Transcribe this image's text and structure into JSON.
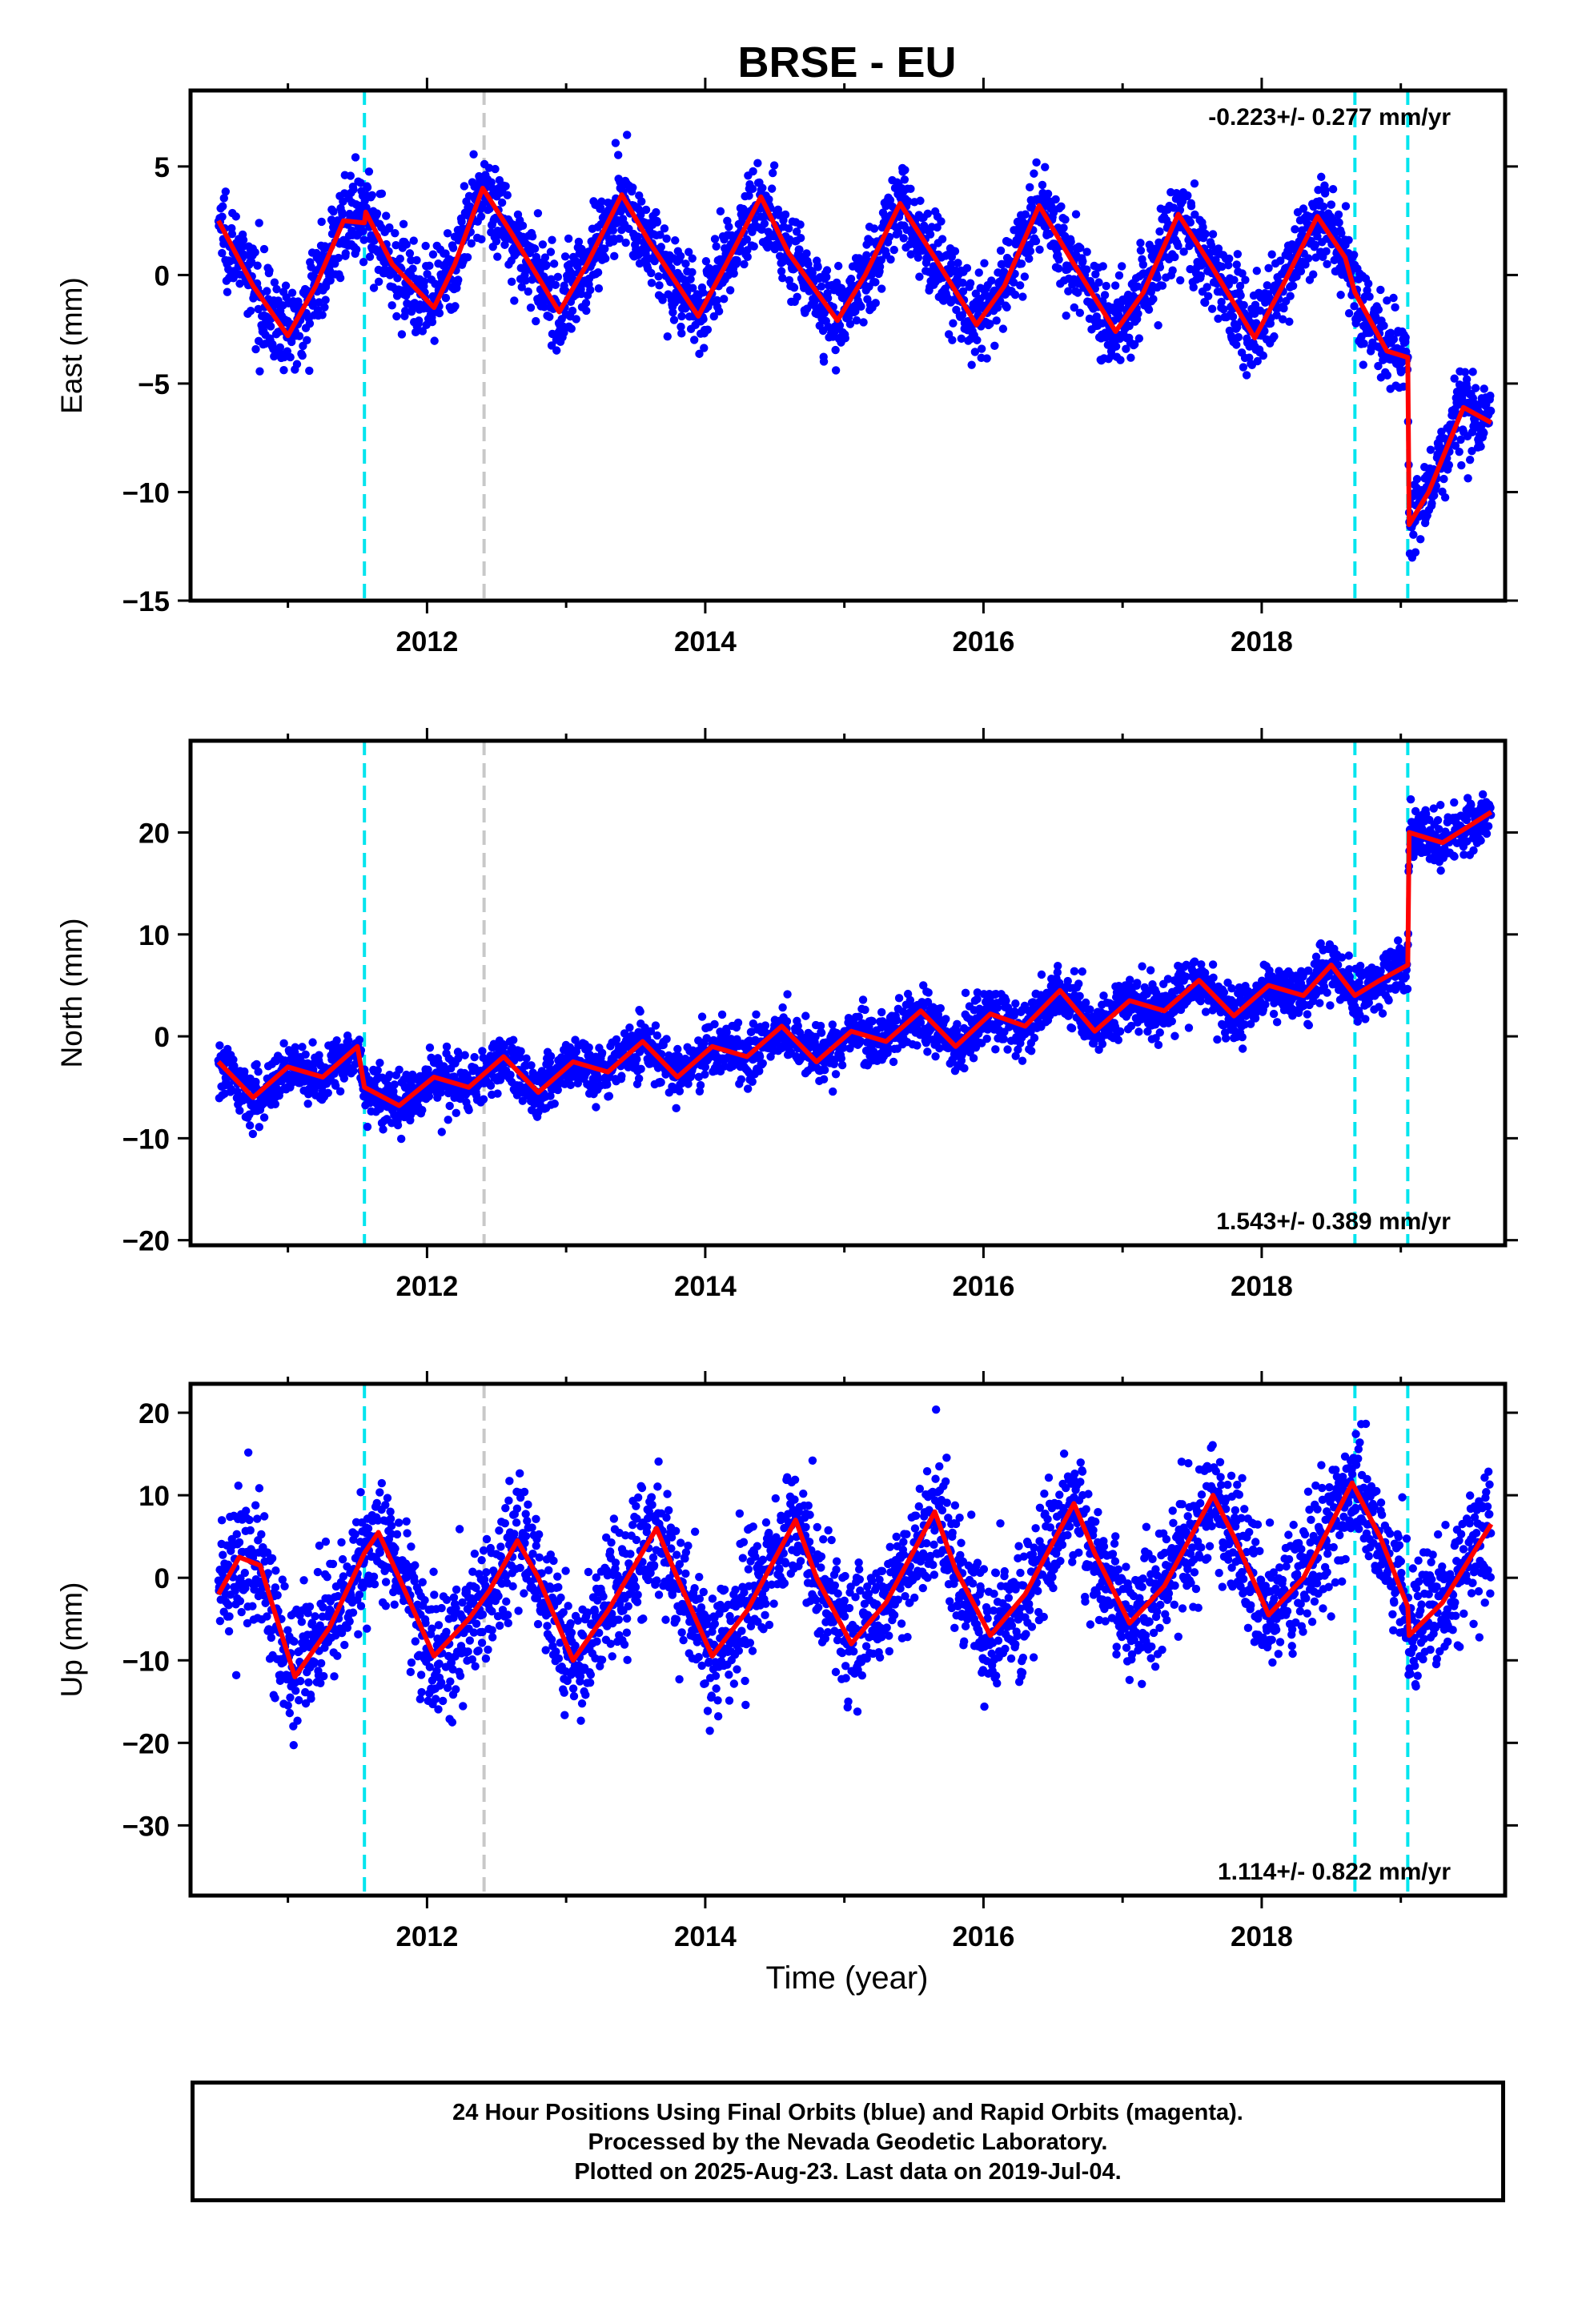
{
  "chart_data": {
    "type": "scatter",
    "title": "BRSE - EU",
    "xlabel": "Time (year)",
    "xlim": [
      2010.3,
      2019.75
    ],
    "x_ticks": [
      "2012",
      "2014",
      "2016",
      "2018"
    ],
    "x_tick_values": [
      2012,
      2014,
      2016,
      2018
    ],
    "colors": {
      "points": "#0000ff",
      "model": "#ff0000",
      "equipment_change": "#00e5ee",
      "other_event": "#c8c8c8"
    },
    "events": [
      {
        "type": "cyan-dashed",
        "x": 2011.55
      },
      {
        "type": "gray-dashed",
        "x": 2012.41
      },
      {
        "type": "cyan-dashed",
        "x": 2018.67
      },
      {
        "type": "cyan-dashed",
        "x": 2019.05
      }
    ],
    "panels": [
      {
        "name": "East",
        "ylabel": "East (mm)",
        "ylim": [
          -15,
          8.5
        ],
        "y_ticks": [
          "5",
          "0",
          "−5",
          "−10",
          "−15"
        ],
        "y_tick_values": [
          5,
          0,
          -5,
          -10,
          -15
        ],
        "rate_text": "-0.223+/- 0.277 mm/yr",
        "rate_position": "top-right",
        "model_points": [
          [
            2010.5,
            2.5
          ],
          [
            2010.75,
            -0.5
          ],
          [
            2011.0,
            -2.8
          ],
          [
            2011.2,
            -0.5
          ],
          [
            2011.4,
            2.5
          ],
          [
            2011.55,
            2.4
          ],
          [
            2011.56,
            2.9
          ],
          [
            2011.75,
            0.5
          ],
          [
            2012.05,
            -1.5
          ],
          [
            2012.2,
            0.5
          ],
          [
            2012.4,
            4.0
          ],
          [
            2012.6,
            2.0
          ],
          [
            2012.95,
            -1.7
          ],
          [
            2013.15,
            0.5
          ],
          [
            2013.4,
            3.7
          ],
          [
            2013.6,
            1.5
          ],
          [
            2013.95,
            -1.9
          ],
          [
            2014.15,
            0.5
          ],
          [
            2014.4,
            3.6
          ],
          [
            2014.6,
            1.0
          ],
          [
            2014.95,
            -2.1
          ],
          [
            2015.15,
            0.0
          ],
          [
            2015.4,
            3.3
          ],
          [
            2015.65,
            0.8
          ],
          [
            2015.95,
            -2.3
          ],
          [
            2016.15,
            -0.5
          ],
          [
            2016.4,
            3.2
          ],
          [
            2016.65,
            0.5
          ],
          [
            2016.95,
            -2.6
          ],
          [
            2017.15,
            -0.8
          ],
          [
            2017.4,
            2.8
          ],
          [
            2017.65,
            0.3
          ],
          [
            2017.95,
            -2.9
          ],
          [
            2018.15,
            -0.5
          ],
          [
            2018.4,
            2.7
          ],
          [
            2018.6,
            0.8
          ],
          [
            2018.67,
            -0.8
          ],
          [
            2018.9,
            -3.5
          ],
          [
            2019.05,
            -3.8
          ],
          [
            2019.06,
            -11.5
          ],
          [
            2019.2,
            -10.0
          ],
          [
            2019.45,
            -6.1
          ],
          [
            2019.65,
            -6.8
          ]
        ]
      },
      {
        "name": "North",
        "ylabel": "North (mm)",
        "ylim": [
          -20.5,
          29
        ],
        "y_ticks": [
          "20",
          "10",
          "0",
          "−10",
          "−20"
        ],
        "y_tick_values": [
          20,
          10,
          0,
          -10,
          -20
        ],
        "rate_text": "1.543+/- 0.389 mm/yr",
        "rate_position": "bottom-right",
        "model_points": [
          [
            2010.5,
            -2.5
          ],
          [
            2010.75,
            -6.0
          ],
          [
            2011.0,
            -3.0
          ],
          [
            2011.25,
            -4.0
          ],
          [
            2011.5,
            -1.0
          ],
          [
            2011.55,
            -5.0
          ],
          [
            2011.8,
            -6.8
          ],
          [
            2012.05,
            -4.0
          ],
          [
            2012.3,
            -5.0
          ],
          [
            2012.55,
            -2.0
          ],
          [
            2012.8,
            -5.5
          ],
          [
            2013.05,
            -2.5
          ],
          [
            2013.3,
            -3.5
          ],
          [
            2013.55,
            -0.5
          ],
          [
            2013.8,
            -4.0
          ],
          [
            2014.05,
            -1.0
          ],
          [
            2014.3,
            -2.0
          ],
          [
            2014.55,
            1.0
          ],
          [
            2014.8,
            -2.5
          ],
          [
            2015.05,
            0.5
          ],
          [
            2015.3,
            -0.5
          ],
          [
            2015.55,
            2.5
          ],
          [
            2015.8,
            -1.0
          ],
          [
            2016.05,
            2.2
          ],
          [
            2016.3,
            1.0
          ],
          [
            2016.55,
            4.5
          ],
          [
            2016.8,
            0.5
          ],
          [
            2017.05,
            3.5
          ],
          [
            2017.3,
            2.5
          ],
          [
            2017.55,
            5.5
          ],
          [
            2017.8,
            2.0
          ],
          [
            2018.05,
            5.0
          ],
          [
            2018.3,
            4.0
          ],
          [
            2018.5,
            7.0
          ],
          [
            2018.67,
            4.0
          ],
          [
            2018.85,
            5.5
          ],
          [
            2019.05,
            7.0
          ],
          [
            2019.06,
            20.0
          ],
          [
            2019.3,
            19.0
          ],
          [
            2019.65,
            22.0
          ]
        ]
      },
      {
        "name": "Up",
        "ylabel": "Up (mm)",
        "ylim": [
          -38.5,
          23.5
        ],
        "y_ticks": [
          "20",
          "10",
          "0",
          "−10",
          "−20",
          "−30"
        ],
        "y_tick_values": [
          20,
          10,
          0,
          -10,
          -20,
          -30
        ],
        "rate_text": "1.114+/- 0.822 mm/yr",
        "rate_position": "bottom-right",
        "model_points": [
          [
            2010.5,
            -2.0
          ],
          [
            2010.65,
            2.5
          ],
          [
            2010.8,
            1.5
          ],
          [
            2011.05,
            -12.0
          ],
          [
            2011.3,
            -6.0
          ],
          [
            2011.55,
            3.0
          ],
          [
            2011.65,
            5.5
          ],
          [
            2011.8,
            0.0
          ],
          [
            2012.05,
            -9.5
          ],
          [
            2012.3,
            -5.0
          ],
          [
            2012.45,
            -1.5
          ],
          [
            2012.65,
            4.5
          ],
          [
            2012.8,
            0.0
          ],
          [
            2013.05,
            -10.0
          ],
          [
            2013.3,
            -4.0
          ],
          [
            2013.65,
            6.0
          ],
          [
            2013.8,
            0.0
          ],
          [
            2014.05,
            -9.5
          ],
          [
            2014.3,
            -4.0
          ],
          [
            2014.65,
            7.0
          ],
          [
            2014.8,
            0.0
          ],
          [
            2015.05,
            -8.0
          ],
          [
            2015.3,
            -3.0
          ],
          [
            2015.65,
            8.0
          ],
          [
            2015.8,
            1.0
          ],
          [
            2016.05,
            -7.0
          ],
          [
            2016.3,
            -2.0
          ],
          [
            2016.65,
            9.0
          ],
          [
            2016.8,
            3.0
          ],
          [
            2017.05,
            -5.5
          ],
          [
            2017.3,
            -1.0
          ],
          [
            2017.65,
            10.0
          ],
          [
            2017.8,
            5.0
          ],
          [
            2018.05,
            -4.5
          ],
          [
            2018.3,
            0.0
          ],
          [
            2018.65,
            11.5
          ],
          [
            2018.85,
            5.0
          ],
          [
            2019.05,
            -3.5
          ],
          [
            2019.06,
            -7.0
          ],
          [
            2019.3,
            -3.0
          ],
          [
            2019.65,
            6.5
          ]
        ]
      }
    ],
    "scatter_description": {
      "point_count_per_panel": 3000,
      "scatter_std_mm": [
        1.0,
        1.3,
        3.8
      ]
    }
  },
  "footer": {
    "line1": "24 Hour Positions Using Final Orbits (blue) and Rapid Orbits (magenta).",
    "line2": "Processed by the Nevada Geodetic Laboratory.",
    "line3": "Plotted on 2025-Aug-23. Last data on 2019-Jul-04."
  }
}
